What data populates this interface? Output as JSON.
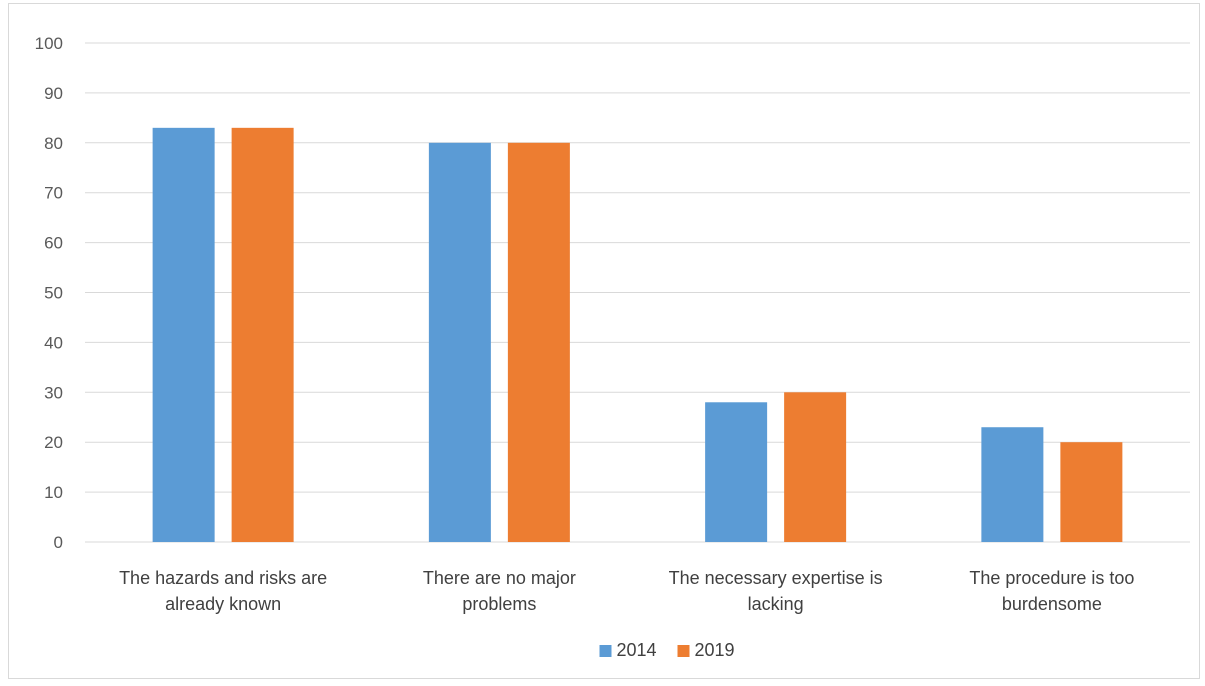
{
  "chart_data": {
    "type": "bar",
    "title": "",
    "xlabel": "",
    "ylabel": "",
    "categories": [
      [
        "The hazards and risks are",
        "already known"
      ],
      [
        "There are no major",
        "problems"
      ],
      [
        "The necessary expertise is",
        "lacking"
      ],
      [
        "The procedure is too",
        "burdensome"
      ]
    ],
    "series": [
      {
        "name": "2014",
        "color": "#5b9bd5",
        "values": [
          83,
          80,
          28,
          23
        ]
      },
      {
        "name": "2019",
        "color": "#ed7d31",
        "values": [
          83,
          80,
          30,
          20
        ]
      }
    ],
    "ylim": [
      0,
      100
    ],
    "yticks": [
      0,
      10,
      20,
      30,
      40,
      50,
      60,
      70,
      80,
      90,
      100
    ],
    "grid": true,
    "gridColor": "#d9d9d9",
    "legend": "bottom-center"
  }
}
